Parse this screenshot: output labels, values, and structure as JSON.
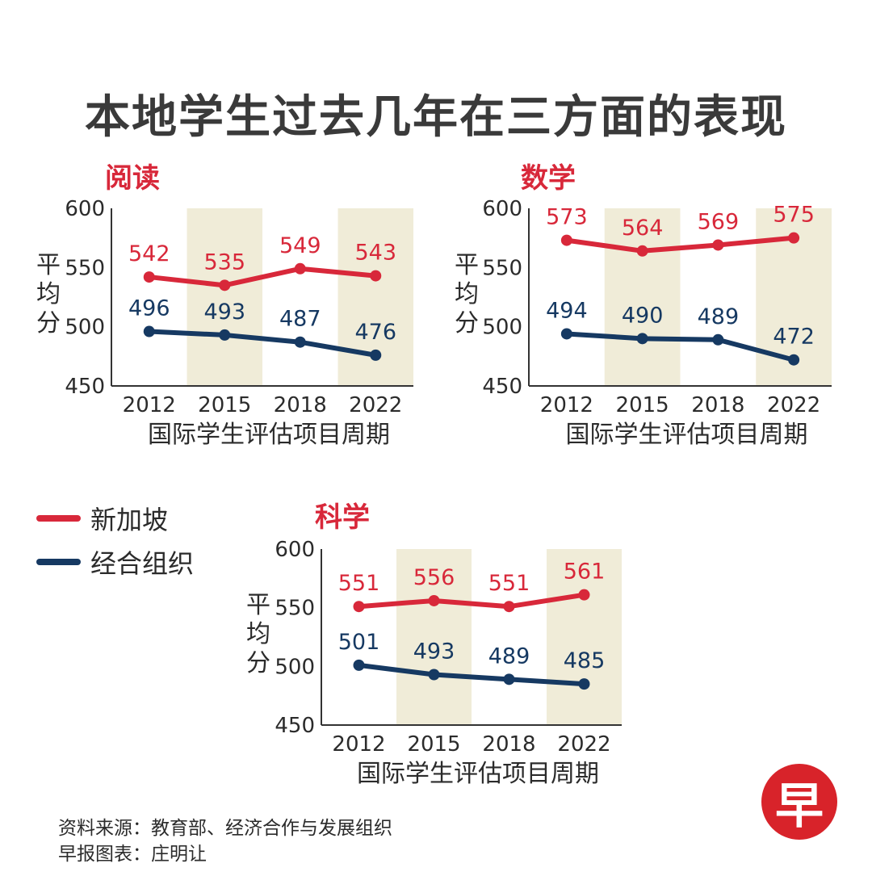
{
  "title": "本地学生过去几年在三方面的表现",
  "colors": {
    "singapore": "#d8283a",
    "oecd": "#163962",
    "highlight": "#f0ecd8",
    "axis": "#333333"
  },
  "legend": [
    {
      "name": "新加坡",
      "color": "#d8283a"
    },
    {
      "name": "经合组织",
      "color": "#163962"
    }
  ],
  "source_line1": "资料来源：教育部、经济合作与发展组织",
  "source_line2": "早报图表：庄明让",
  "logo_text": "早",
  "chart_data": [
    {
      "type": "line",
      "title": "阅读",
      "categories": [
        "2012",
        "2015",
        "2018",
        "2022"
      ],
      "highlighted": [
        "2015",
        "2022"
      ],
      "ylabel": "平均分",
      "xlabel": "国际学生评估项目周期",
      "ylim": [
        450,
        600
      ],
      "yticks": [
        450,
        500,
        550,
        600
      ],
      "series": [
        {
          "name": "新加坡",
          "values": [
            542,
            535,
            549,
            543
          ]
        },
        {
          "name": "经合组织",
          "values": [
            496,
            493,
            487,
            476
          ]
        }
      ]
    },
    {
      "type": "line",
      "title": "数学",
      "categories": [
        "2012",
        "2015",
        "2018",
        "2022"
      ],
      "highlighted": [
        "2015",
        "2022"
      ],
      "ylabel": "平均分",
      "xlabel": "国际学生评估项目周期",
      "ylim": [
        450,
        600
      ],
      "yticks": [
        450,
        500,
        550,
        600
      ],
      "series": [
        {
          "name": "新加坡",
          "values": [
            573,
            564,
            569,
            575
          ]
        },
        {
          "name": "经合组织",
          "values": [
            494,
            490,
            489,
            472
          ]
        }
      ]
    },
    {
      "type": "line",
      "title": "科学",
      "categories": [
        "2012",
        "2015",
        "2018",
        "2022"
      ],
      "highlighted": [
        "2015",
        "2022"
      ],
      "ylabel": "平均分",
      "xlabel": "国际学生评估项目周期",
      "ylim": [
        450,
        600
      ],
      "yticks": [
        450,
        500,
        550,
        600
      ],
      "series": [
        {
          "name": "新加坡",
          "values": [
            551,
            556,
            551,
            561
          ]
        },
        {
          "name": "经合组织",
          "values": [
            501,
            493,
            489,
            485
          ]
        }
      ]
    }
  ]
}
